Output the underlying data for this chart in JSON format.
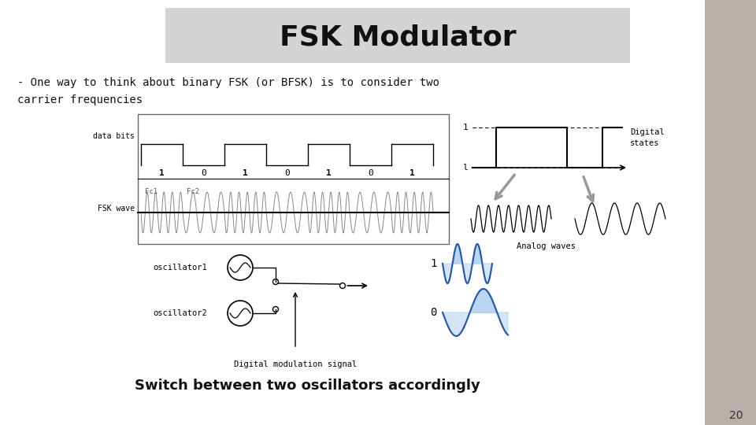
{
  "title": "FSK Modulator",
  "subtitle": "- One way to think about binary FSK (or BFSK) is to consider two\ncarrier frequencies",
  "bottom_text": "Switch between two oscillators accordingly",
  "slide_bg": "#ffffff",
  "title_bg": "#d0d0d0",
  "right_panel_bg": "#b8b0a8",
  "page_number": "20"
}
